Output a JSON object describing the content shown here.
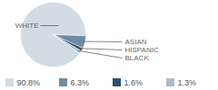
{
  "chart_data": {
    "type": "pie",
    "categories": [
      "WHITE",
      "ASIAN",
      "HISPANIC",
      "BLACK"
    ],
    "values": [
      90.8,
      6.3,
      1.6,
      1.3
    ],
    "value_labels": [
      "90.8%",
      "6.3%",
      "1.6%",
      "1.3%"
    ],
    "colors": [
      "#d3dbe5",
      "#6f8aa6",
      "#2e4d6e",
      "#a9b9cb"
    ],
    "legend": "bottom"
  }
}
